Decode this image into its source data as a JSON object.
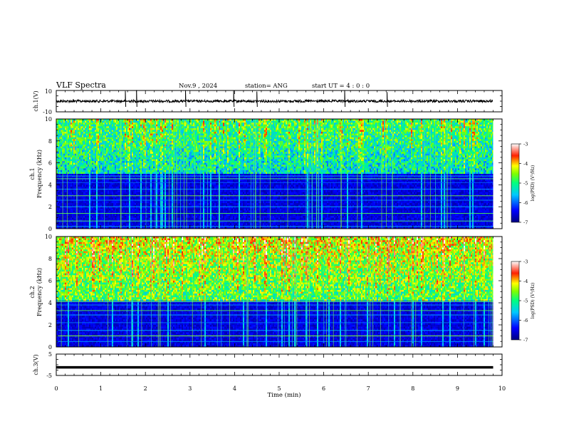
{
  "header": {
    "title": "VLF Spectra",
    "date": "Nov.9 , 2024",
    "station": "station= ANG",
    "start": "start UT = 4 : 0 : 0"
  },
  "chart_data": [
    {
      "type": "line",
      "panel": "ch1-waveform",
      "ylabel": "ch.1(V)",
      "ylim": [
        -10,
        10
      ],
      "yticks": [
        "10",
        "-10"
      ],
      "level": 0,
      "spikes_t": [
        1.55,
        1.8,
        2.9,
        3.98,
        4.5,
        6.47,
        7.42
      ]
    },
    {
      "type": "heatmap",
      "panel": "ch1-spectrogram",
      "ylabel_top": "ch.1",
      "ylabel": "Frequency (kHz)",
      "ylim": [
        0,
        10
      ],
      "yticks": [
        "0",
        "2",
        "4",
        "6",
        "8",
        "10"
      ],
      "colorbar": {
        "label": "log(PSD) (V²/Hz)",
        "range": [
          -7,
          -3
        ],
        "ticks": [
          "-3",
          "-4",
          "-5",
          "-6",
          "-7"
        ]
      }
    },
    {
      "type": "heatmap",
      "panel": "ch2-spectrogram",
      "ylabel_top": "ch.2",
      "ylabel": "Frequency (kHz)",
      "ylim": [
        0,
        10
      ],
      "yticks": [
        "0",
        "2",
        "4",
        "6",
        "8",
        "10"
      ],
      "colorbar": {
        "label": "log(PSD) (V²/Hz)",
        "range": [
          -7,
          -3
        ],
        "ticks": [
          "-3",
          "-4",
          "-5",
          "-6",
          "-7"
        ]
      }
    },
    {
      "type": "line",
      "panel": "ch3-waveform",
      "ylabel": "ch.3(V)",
      "ylim": [
        -5,
        5
      ],
      "yticks": [
        "5",
        "-5"
      ],
      "level": -1.2
    }
  ],
  "xaxis": {
    "label": "Time (min)",
    "range": [
      0,
      10
    ],
    "data_end": 9.8,
    "ticks": [
      "0",
      "1",
      "2",
      "3",
      "4",
      "5",
      "6",
      "7",
      "8",
      "9",
      "10"
    ]
  },
  "colors": {
    "cmap": [
      "#00008b",
      "#0000ff",
      "#00a0ff",
      "#00ffff",
      "#00ff80",
      "#80ff00",
      "#ffff00",
      "#ff8000",
      "#ff0000",
      "#ffffff"
    ],
    "axis": "#000000"
  }
}
